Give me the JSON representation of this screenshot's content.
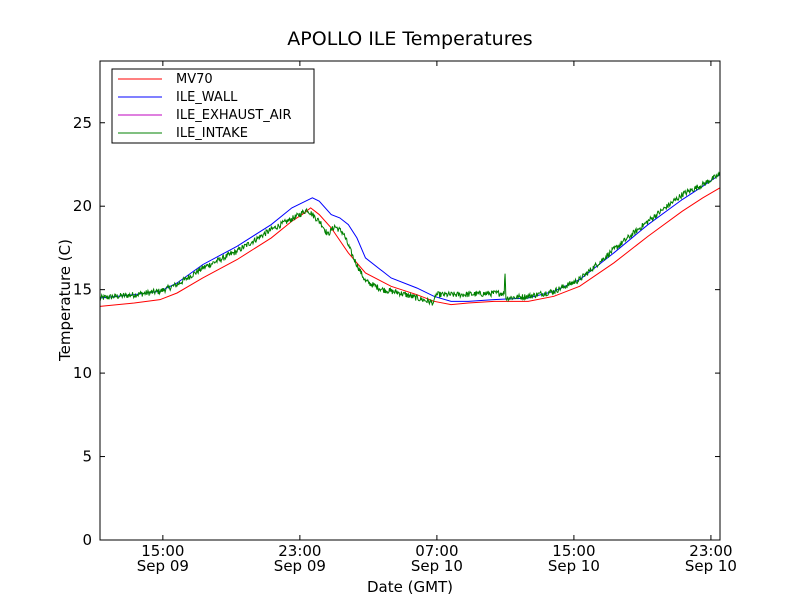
{
  "chart_data": {
    "type": "line",
    "title": "APOLLO ILE Temperatures",
    "xlabel": "Date (GMT)",
    "ylabel": "Temperature (C)",
    "x_unit": "hours since Sep 09 11:20 GMT",
    "xlim": [
      0,
      36.2
    ],
    "ylim": [
      0,
      28.7
    ],
    "y_ticks": [
      0,
      5,
      10,
      15,
      20,
      25
    ],
    "x_ticks": [
      {
        "x": 3.67,
        "time": "15:00",
        "date": "Sep 09"
      },
      {
        "x": 11.67,
        "time": "23:00",
        "date": "Sep 09"
      },
      {
        "x": 19.67,
        "time": "07:00",
        "date": "Sep 10"
      },
      {
        "x": 27.67,
        "time": "15:00",
        "date": "Sep 10"
      },
      {
        "x": 35.67,
        "time": "23:00",
        "date": "Sep 10"
      }
    ],
    "legend_position": "top-left",
    "series": [
      {
        "name": "MV70",
        "color": "#ff0000",
        "noise": 0,
        "points": [
          [
            0,
            14.0
          ],
          [
            2,
            14.2
          ],
          [
            3.5,
            14.4
          ],
          [
            4.5,
            14.8
          ],
          [
            6,
            15.7
          ],
          [
            8,
            16.8
          ],
          [
            10,
            18.1
          ],
          [
            11.2,
            19.1
          ],
          [
            11.8,
            19.5
          ],
          [
            12.3,
            19.9
          ],
          [
            12.8,
            19.5
          ],
          [
            13.5,
            18.7
          ],
          [
            14.5,
            17.2
          ],
          [
            15.5,
            16.0
          ],
          [
            17,
            15.2
          ],
          [
            18.5,
            14.7
          ],
          [
            19.5,
            14.3
          ],
          [
            20.5,
            14.1
          ],
          [
            21.5,
            14.2
          ],
          [
            23,
            14.3
          ],
          [
            25,
            14.3
          ],
          [
            26.5,
            14.6
          ],
          [
            28,
            15.2
          ],
          [
            30,
            16.6
          ],
          [
            32,
            18.2
          ],
          [
            34,
            19.7
          ],
          [
            35.2,
            20.5
          ],
          [
            36.2,
            21.1
          ]
        ]
      },
      {
        "name": "ILE_WALL",
        "color": "#0000ff",
        "noise": 0,
        "points": [
          [
            0,
            14.5
          ],
          [
            2,
            14.7
          ],
          [
            3.5,
            14.9
          ],
          [
            4.5,
            15.4
          ],
          [
            6,
            16.5
          ],
          [
            8,
            17.6
          ],
          [
            10,
            18.9
          ],
          [
            11.2,
            19.9
          ],
          [
            12,
            20.3
          ],
          [
            12.4,
            20.5
          ],
          [
            12.8,
            20.3
          ],
          [
            13.5,
            19.5
          ],
          [
            14,
            19.3
          ],
          [
            14.5,
            18.9
          ],
          [
            15,
            18.1
          ],
          [
            15.5,
            16.9
          ],
          [
            17,
            15.7
          ],
          [
            18.5,
            15.1
          ],
          [
            19.5,
            14.6
          ],
          [
            20.5,
            14.3
          ],
          [
            21.5,
            14.3
          ],
          [
            23,
            14.4
          ],
          [
            25,
            14.5
          ],
          [
            26.5,
            14.9
          ],
          [
            28,
            15.6
          ],
          [
            30,
            17.2
          ],
          [
            32,
            18.9
          ],
          [
            34,
            20.4
          ],
          [
            35.2,
            21.2
          ],
          [
            36.2,
            21.9
          ]
        ]
      },
      {
        "name": "ILE_EXHAUST_AIR",
        "color": "#bf00bf",
        "noise": 0,
        "points": []
      },
      {
        "name": "ILE_INTAKE",
        "color": "#008000",
        "noise": 0.18,
        "points": [
          [
            0,
            14.5
          ],
          [
            2,
            14.7
          ],
          [
            3.5,
            14.9
          ],
          [
            4.5,
            15.3
          ],
          [
            6,
            16.3
          ],
          [
            8,
            17.3
          ],
          [
            10,
            18.6
          ],
          [
            11.5,
            19.4
          ],
          [
            12.1,
            19.8
          ],
          [
            12.4,
            19.5
          ],
          [
            12.9,
            19.0
          ],
          [
            13.3,
            18.3
          ],
          [
            13.7,
            18.8
          ],
          [
            14.2,
            18.4
          ],
          [
            14.8,
            16.9
          ],
          [
            15.5,
            15.5
          ],
          [
            16.5,
            15.0
          ],
          [
            17.5,
            14.8
          ],
          [
            18.5,
            14.5
          ],
          [
            19.5,
            14.2
          ],
          [
            19.6,
            14.7
          ],
          [
            21,
            14.7
          ],
          [
            23.6,
            14.8
          ],
          [
            23.65,
            16.1
          ],
          [
            23.7,
            14.5
          ],
          [
            25,
            14.6
          ],
          [
            26.5,
            14.9
          ],
          [
            28,
            15.6
          ],
          [
            30,
            17.4
          ],
          [
            32,
            19.1
          ],
          [
            34,
            20.7
          ],
          [
            35.2,
            21.3
          ],
          [
            36.2,
            21.9
          ]
        ]
      }
    ]
  }
}
